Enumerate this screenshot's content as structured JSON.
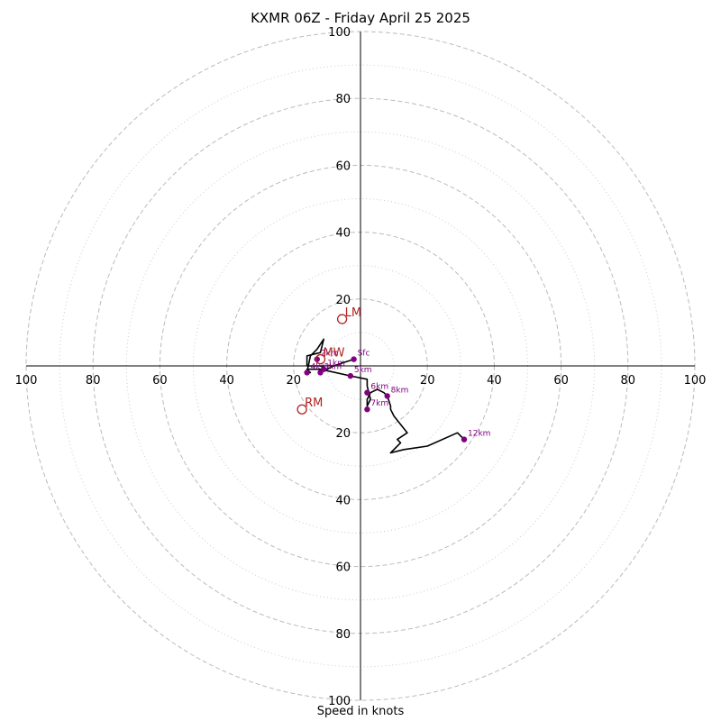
{
  "chart_data": {
    "type": "line",
    "title": "KXMR 06Z - Friday April 25 2025",
    "xlabel": "Speed in knots",
    "ylabel": "",
    "range": 100,
    "ring_major": [
      20,
      40,
      60,
      80,
      100
    ],
    "ring_minor": [
      10,
      30,
      50,
      70,
      90
    ],
    "tick_labels": {
      "left": [
        "100",
        "80",
        "60",
        "40",
        "20"
      ],
      "right": [
        "20",
        "40",
        "60",
        "80",
        "100"
      ],
      "top": [
        "100",
        "80",
        "60",
        "40",
        "20"
      ],
      "bottom": [
        "20",
        "40",
        "60",
        "80",
        "100"
      ]
    },
    "grid": true,
    "colors": {
      "trace": "#000000",
      "points": "#800080",
      "motion": "#b22222",
      "grid": "#bbbbbb"
    },
    "hodograph": {
      "x": [
        -2,
        -5,
        -8,
        -10,
        -12,
        -14,
        -16,
        -16,
        -12,
        -11,
        -13,
        -15,
        -16,
        -15,
        -16,
        -12,
        -3,
        2,
        2,
        3,
        2,
        2,
        3,
        5,
        7,
        8,
        9,
        9,
        10,
        14,
        11,
        12,
        9,
        13,
        20,
        29,
        31
      ],
      "y": [
        2,
        1,
        0,
        -1,
        0,
        0,
        0,
        3,
        4,
        8,
        5,
        3,
        -2,
        -2,
        -1,
        -1,
        -3,
        -4,
        -6,
        -10,
        -12,
        -10,
        -8,
        -7,
        -8,
        -9,
        -12,
        -13,
        -15,
        -20,
        -22,
        -23,
        -26,
        -25,
        -24,
        -20,
        -22
      ]
    },
    "height_points": [
      {
        "label": "Sfc",
        "x": -2,
        "y": 2
      },
      {
        "label": "1km",
        "x": -11,
        "y": -1
      },
      {
        "label": "2km",
        "x": -13,
        "y": 2
      },
      {
        "label": "3km",
        "x": -12,
        "y": -2
      },
      {
        "label": "4km",
        "x": -16,
        "y": -2
      },
      {
        "label": "5km",
        "x": -3,
        "y": -3
      },
      {
        "label": "6km",
        "x": 2,
        "y": -8
      },
      {
        "label": "7km",
        "x": 2,
        "y": -13
      },
      {
        "label": "8km",
        "x": 8,
        "y": -9
      },
      {
        "label": "12km",
        "x": 31,
        "y": -22
      }
    ],
    "storm_motion": [
      {
        "label": "LM",
        "x": -5.5,
        "y": 14
      },
      {
        "label": "MW",
        "x": -12,
        "y": 2
      },
      {
        "label": "RM",
        "x": -17.5,
        "y": -13
      }
    ]
  }
}
